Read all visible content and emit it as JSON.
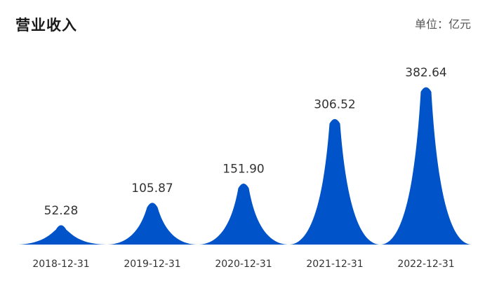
{
  "header": {
    "title": "营业收入",
    "unit": "单位：亿元"
  },
  "chart_data": {
    "type": "bar",
    "title": "营业收入",
    "unit": "亿元",
    "categories": [
      "2018-12-31",
      "2019-12-31",
      "2020-12-31",
      "2021-12-31",
      "2022-12-31"
    ],
    "values": [
      52.28,
      105.87,
      151.9,
      306.52,
      382.64
    ],
    "value_labels": [
      "52.28",
      "105.87",
      "151.90",
      "306.52",
      "382.64"
    ],
    "ylim": [
      0,
      400
    ],
    "bar_color": "#0053c8",
    "grid": false,
    "legend": "none"
  }
}
